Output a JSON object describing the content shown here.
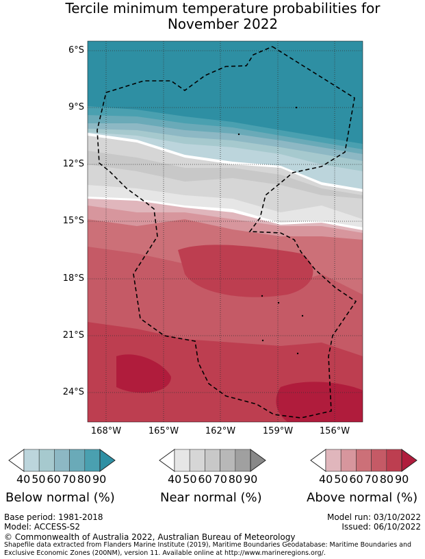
{
  "title_line1": "Tercile minimum temperature probabilities for",
  "title_line2": "November 2022",
  "map": {
    "lat_labels": [
      "6°S",
      "9°S",
      "12°S",
      "15°S",
      "18°S",
      "21°S",
      "24°S"
    ],
    "lon_labels": [
      "168°W",
      "165°W",
      "162°W",
      "159°W",
      "156°W"
    ]
  },
  "colorbars": [
    {
      "label": "Below normal (%)",
      "ticks": [
        "40",
        "50",
        "60",
        "70",
        "80",
        "90"
      ],
      "colors": [
        "#bcd5dc",
        "#a6c9ce",
        "#8db8c4",
        "#6aaab8",
        "#4aa0b0",
        "#2e8fa3"
      ]
    },
    {
      "label": "Near normal (%)",
      "ticks": [
        "40",
        "50",
        "60",
        "70",
        "80",
        "90"
      ],
      "colors": [
        "#e6e6e6",
        "#d6d6d6",
        "#c8c8c8",
        "#b8b8b8",
        "#a0a0a0",
        "#888888"
      ]
    },
    {
      "label": "Above normal (%)",
      "ticks": [
        "40",
        "50",
        "60",
        "70",
        "80",
        "90"
      ],
      "colors": [
        "#e0b6bc",
        "#d7969d",
        "#cc7078",
        "#c55a66",
        "#bd3e50",
        "#b01c3c"
      ]
    }
  ],
  "footer": {
    "base_period": "Base period: 1981-2018",
    "model": "Model: ACCESS-S2",
    "model_run": "Model run: 03/10/2022",
    "issued": "Issued: 06/10/2022",
    "copyright": "© Commonwealth of Australia 2022, Australian Bureau of Meteorology",
    "shapefile": "Shapefile data extracted from Flanders Marine Institute (2019), Maritime Boundaries Geodatabase: Maritime Boundaries and Exclusive Economic Zones (200NM), version 11. Available online at http://www.marineregions.org/."
  }
}
